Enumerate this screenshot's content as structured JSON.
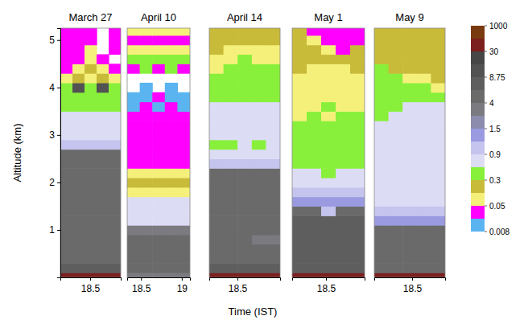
{
  "chart_data": {
    "type": "heatmap",
    "x_label": "Time (IST)",
    "y_label": "Altitude (km)",
    "ylim": [
      0,
      5.25
    ],
    "yticks": [
      1,
      2,
      3,
      4,
      5
    ],
    "altitude_edges": [
      0,
      0.1,
      0.3,
      0.5,
      0.7,
      0.9,
      1.1,
      1.3,
      1.5,
      1.7,
      1.9,
      2.1,
      2.3,
      2.5,
      2.7,
      2.9,
      3.1,
      3.3,
      3.5,
      3.7,
      3.9,
      4.1,
      4.3,
      4.5,
      4.7,
      4.9,
      5.1,
      5.25
    ],
    "colorbar": {
      "levels": [
        0.008,
        0.02,
        0.05,
        0.1,
        0.3,
        0.6,
        0.9,
        1.2,
        1.5,
        2.5,
        4,
        6,
        8.75,
        15,
        30,
        100,
        1000
      ],
      "colors": [
        "#5ab4f0",
        "#ff00ff",
        "#f5f07a",
        "#c9bb3a",
        "#88f03a",
        "#dcdcf5",
        "#c4c4ee",
        "#9a9ae0",
        "#8c8cae",
        "#7a7a80",
        "#6a6a6a",
        "#5e5e5e",
        "#525252",
        "#464646",
        "#7b1f1f",
        "#7a3a10"
      ],
      "ticks": [
        0.008,
        0.05,
        0.3,
        0.9,
        1.5,
        4,
        8.75,
        30,
        1000
      ]
    },
    "panels": [
      {
        "title": "March 27",
        "xlim": [
          18.13,
          18.88
        ],
        "xticks": [
          18.5
        ],
        "time_edges": [
          18.13,
          18.28,
          18.43,
          18.58,
          18.73,
          18.88
        ],
        "values": [
          [
            50,
            50,
            50,
            50,
            50
          ],
          [
            7,
            7,
            7,
            7,
            7
          ],
          [
            5,
            5,
            5,
            5,
            5
          ],
          [
            5,
            5,
            5,
            5,
            5
          ],
          [
            5,
            5,
            5,
            5,
            5
          ],
          [
            5,
            5,
            5,
            5,
            5
          ],
          [
            5,
            5,
            5,
            5,
            5
          ],
          [
            5,
            5,
            5,
            5,
            5
          ],
          [
            5,
            5,
            5,
            5,
            5
          ],
          [
            5,
            5,
            5,
            5,
            5
          ],
          [
            5,
            5,
            5,
            5,
            5
          ],
          [
            5,
            5,
            5,
            5,
            5
          ],
          [
            5,
            5,
            5,
            5,
            5
          ],
          [
            5,
            5,
            5,
            5,
            5
          ],
          [
            1.0,
            1.0,
            1.0,
            1.0,
            1.0
          ],
          [
            0.7,
            0.7,
            0.7,
            0.7,
            0.7
          ],
          [
            0.7,
            0.7,
            0.7,
            0.7,
            0.7
          ],
          [
            0.7,
            0.7,
            0.7,
            0.7,
            0.7
          ],
          [
            0.4,
            0.4,
            0.4,
            0.4,
            0.4
          ],
          [
            0.4,
            0.4,
            0.4,
            0.4,
            0.4
          ],
          [
            0.4,
            10,
            0.4,
            10,
            0.4
          ],
          [
            0.07,
            0.2,
            0.07,
            0.2,
            0.07
          ],
          [
            0.03,
            0.07,
            0.2,
            0.07,
            0.03
          ],
          [
            0.03,
            0.03,
            0.07,
            0.03,
            null
          ],
          [
            0.03,
            0.03,
            0.07,
            null,
            0.03
          ],
          [
            0.03,
            0.03,
            0.03,
            null,
            0.03
          ],
          [
            0.03,
            0.03,
            0.03,
            null,
            0.03
          ]
        ]
      },
      {
        "title": "April 10",
        "xlim": [
          18.33,
          19.1
        ],
        "xticks": [
          18.5,
          19
        ],
        "time_edges": [
          18.33,
          18.484,
          18.638,
          18.792,
          18.946,
          19.1
        ],
        "values": [
          [
            3,
            3,
            3,
            3,
            3
          ],
          [
            5,
            5,
            5,
            5,
            5
          ],
          [
            5,
            5,
            5,
            5,
            5
          ],
          [
            5,
            5,
            5,
            5,
            5
          ],
          [
            5,
            5,
            5,
            5,
            5
          ],
          [
            3,
            3,
            3,
            3,
            3
          ],
          [
            0.7,
            0.7,
            0.7,
            0.7,
            0.7
          ],
          [
            0.7,
            0.7,
            0.7,
            0.7,
            0.7
          ],
          [
            0.7,
            0.7,
            0.7,
            0.7,
            0.7
          ],
          [
            0.07,
            0.07,
            0.07,
            0.07,
            0.07
          ],
          [
            0.2,
            0.2,
            0.2,
            0.2,
            0.2
          ],
          [
            0.07,
            0.07,
            0.07,
            0.07,
            0.07
          ],
          [
            0.03,
            0.03,
            0.03,
            0.03,
            0.03
          ],
          [
            0.03,
            0.03,
            0.03,
            0.03,
            0.03
          ],
          [
            0.03,
            0.03,
            0.03,
            0.03,
            0.03
          ],
          [
            0.03,
            0.03,
            0.03,
            0.03,
            0.03
          ],
          [
            0.03,
            0.03,
            0.03,
            0.03,
            0.03
          ],
          [
            0.03,
            0.03,
            0.03,
            0.03,
            0.03
          ],
          [
            0.012,
            0.03,
            0.012,
            0.03,
            0.012
          ],
          [
            0.012,
            0.012,
            0.03,
            0.012,
            0.012
          ],
          [
            null,
            0.012,
            null,
            0.012,
            null
          ],
          [
            null,
            null,
            null,
            null,
            null
          ],
          [
            0.03,
            0.4,
            0.03,
            0.4,
            0.03
          ],
          [
            0.4,
            0.4,
            0.4,
            0.4,
            0.4
          ],
          [
            0.07,
            0.07,
            0.07,
            0.07,
            0.07
          ],
          [
            0.03,
            0.03,
            0.03,
            0.03,
            0.03
          ],
          [
            0.07,
            0.07,
            0.07,
            0.07,
            0.07
          ]
        ]
      },
      {
        "title": "April 14",
        "xlim": [
          18.15,
          19.03
        ],
        "xticks": [
          18.5
        ],
        "time_edges": [
          18.15,
          18.326,
          18.502,
          18.678,
          18.854,
          19.03
        ],
        "values": [
          [
            50,
            50,
            50,
            50,
            50
          ],
          [
            7,
            7,
            7,
            7,
            7
          ],
          [
            5,
            5,
            5,
            5,
            5
          ],
          [
            5,
            5,
            5,
            5,
            5
          ],
          [
            5,
            5,
            5,
            3,
            3
          ],
          [
            5,
            5,
            5,
            5,
            5
          ],
          [
            5,
            5,
            5,
            5,
            5
          ],
          [
            5,
            5,
            5,
            5,
            5
          ],
          [
            5,
            5,
            5,
            5,
            5
          ],
          [
            5,
            5,
            5,
            5,
            5
          ],
          [
            5,
            5,
            5,
            5,
            5
          ],
          [
            5,
            5,
            5,
            5,
            5
          ],
          [
            1.0,
            1.0,
            1.0,
            1.0,
            1.0
          ],
          [
            0.7,
            0.7,
            0.7,
            0.7,
            0.7
          ],
          [
            0.4,
            0.4,
            0.7,
            0.4,
            0.7
          ],
          [
            0.7,
            0.7,
            0.7,
            0.7,
            0.7
          ],
          [
            0.7,
            0.7,
            0.7,
            0.7,
            0.7
          ],
          [
            0.7,
            0.7,
            0.7,
            0.7,
            0.7
          ],
          [
            0.7,
            0.7,
            0.7,
            0.7,
            0.7
          ],
          [
            0.4,
            0.4,
            0.4,
            0.4,
            0.4
          ],
          [
            0.4,
            0.4,
            0.4,
            0.4,
            0.4
          ],
          [
            0.4,
            0.4,
            0.4,
            0.4,
            0.4
          ],
          [
            0.07,
            0.4,
            0.4,
            0.4,
            0.4
          ],
          [
            0.07,
            0.07,
            0.4,
            0.07,
            0.07
          ],
          [
            0.2,
            0.07,
            0.07,
            0.07,
            0.07
          ],
          [
            0.2,
            0.2,
            0.2,
            0.2,
            0.2
          ],
          [
            0.2,
            0.2,
            0.2,
            0.2,
            0.2
          ]
        ]
      },
      {
        "title": "May 1",
        "xlim": [
          18.08,
          18.98
        ],
        "xticks": [
          18.5
        ],
        "time_edges": [
          18.08,
          18.26,
          18.44,
          18.62,
          18.8,
          18.98
        ],
        "values": [
          [
            50,
            50,
            50,
            50,
            50
          ],
          [
            7,
            7,
            7,
            7,
            7
          ],
          [
            7,
            7,
            7,
            7,
            7
          ],
          [
            7,
            7,
            7,
            7,
            7
          ],
          [
            7,
            7,
            7,
            7,
            7
          ],
          [
            7,
            7,
            7,
            7,
            7
          ],
          [
            7,
            7,
            7,
            7,
            7
          ],
          [
            5,
            5,
            1.0,
            5,
            5
          ],
          [
            1.3,
            1.3,
            1.3,
            1.3,
            1.3
          ],
          [
            1.0,
            1.0,
            1.0,
            1.0,
            1.0
          ],
          [
            0.7,
            0.7,
            0.7,
            0.7,
            0.7
          ],
          [
            0.7,
            0.7,
            0.4,
            0.7,
            0.7
          ],
          [
            0.4,
            0.4,
            0.4,
            0.4,
            0.4
          ],
          [
            0.4,
            0.4,
            0.4,
            0.4,
            0.4
          ],
          [
            0.4,
            0.4,
            0.4,
            0.4,
            0.4
          ],
          [
            0.4,
            0.4,
            0.4,
            0.4,
            0.4
          ],
          [
            0.4,
            0.4,
            0.4,
            0.4,
            0.4
          ],
          [
            0.07,
            0.4,
            0.07,
            0.4,
            0.4
          ],
          [
            0.07,
            0.07,
            0.4,
            0.07,
            0.07
          ],
          [
            0.07,
            0.07,
            0.07,
            0.07,
            0.07
          ],
          [
            0.07,
            0.07,
            0.07,
            0.07,
            0.07
          ],
          [
            0.07,
            0.07,
            0.07,
            0.07,
            0.07
          ],
          [
            0.2,
            0.07,
            0.07,
            0.07,
            0.2
          ],
          [
            0.2,
            0.2,
            0.2,
            0.2,
            0.2
          ],
          [
            0.2,
            0.2,
            0.07,
            0.03,
            0.2
          ],
          [
            0.2,
            0.07,
            0.03,
            0.03,
            0.03
          ],
          [
            0.2,
            0.03,
            0.03,
            0.03,
            0.03
          ]
        ]
      },
      {
        "title": "May 9",
        "xlim": [
          18.03,
          18.91
        ],
        "xticks": [
          18.5
        ],
        "time_edges": [
          18.03,
          18.206,
          18.382,
          18.558,
          18.734,
          18.91
        ],
        "values": [
          [
            50,
            50,
            50,
            50,
            50
          ],
          [
            5,
            5,
            5,
            5,
            5
          ],
          [
            5,
            5,
            5,
            5,
            5
          ],
          [
            5,
            5,
            5,
            5,
            5
          ],
          [
            5,
            5,
            5,
            5,
            5
          ],
          [
            5,
            5,
            5,
            5,
            5
          ],
          [
            1.3,
            1.3,
            1.3,
            1.3,
            1.3
          ],
          [
            1.0,
            1.0,
            1.0,
            1.0,
            1.0
          ],
          [
            0.7,
            0.7,
            0.7,
            0.7,
            0.7
          ],
          [
            0.7,
            0.7,
            0.7,
            0.7,
            0.7
          ],
          [
            0.7,
            0.7,
            0.7,
            0.7,
            0.7
          ],
          [
            0.7,
            0.7,
            0.7,
            0.7,
            0.7
          ],
          [
            0.7,
            0.7,
            0.7,
            0.7,
            0.7
          ],
          [
            0.7,
            0.7,
            0.7,
            0.7,
            0.7
          ],
          [
            0.7,
            0.7,
            0.7,
            0.7,
            0.7
          ],
          [
            0.7,
            0.7,
            0.7,
            0.7,
            0.7
          ],
          [
            0.7,
            0.7,
            0.7,
            0.7,
            0.7
          ],
          [
            0.4,
            0.7,
            0.7,
            0.7,
            0.7
          ],
          [
            0.4,
            0.4,
            0.7,
            0.7,
            0.7
          ],
          [
            0.4,
            0.4,
            0.4,
            0.4,
            0.4
          ],
          [
            0.4,
            0.4,
            0.4,
            0.4,
            0.07
          ],
          [
            0.4,
            0.4,
            0.07,
            0.07,
            0.2
          ],
          [
            0.4,
            0.2,
            0.2,
            0.2,
            0.2
          ],
          [
            0.2,
            0.2,
            0.2,
            0.2,
            0.2
          ],
          [
            0.2,
            0.2,
            0.2,
            0.2,
            0.2
          ],
          [
            0.2,
            0.2,
            0.2,
            0.2,
            0.2
          ],
          [
            0.2,
            0.2,
            0.2,
            0.2,
            0.2
          ]
        ]
      }
    ]
  }
}
